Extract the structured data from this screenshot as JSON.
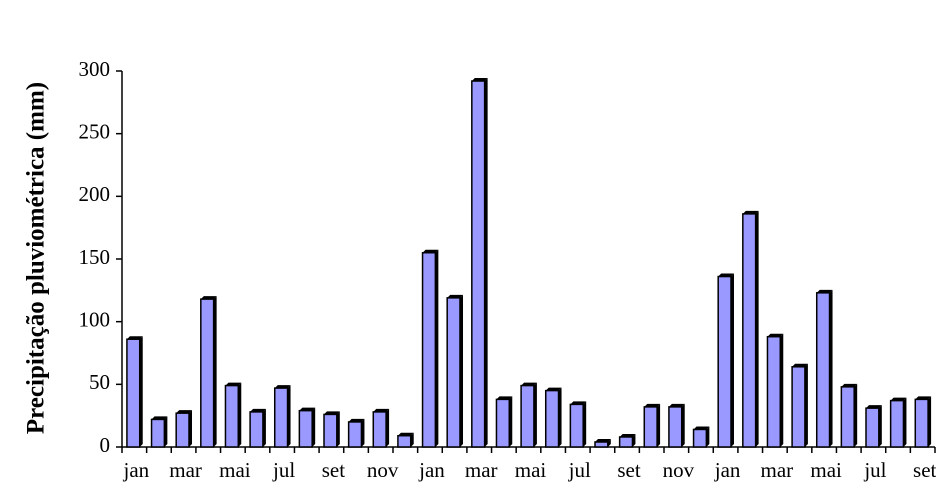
{
  "chart_data": {
    "type": "bar",
    "y_label": "Precipitação pluviométrica (mm)",
    "categories": [
      "jan",
      null,
      "mar",
      null,
      "mai",
      null,
      "jul",
      null,
      "set",
      null,
      "nov",
      null,
      "jan",
      null,
      "mar",
      null,
      "mai",
      null,
      "jul",
      null,
      "set",
      null,
      "nov",
      null,
      "jan",
      null,
      "mar",
      null,
      "mai",
      null,
      "jul",
      null,
      "set"
    ],
    "values": [
      86,
      22,
      27,
      118,
      49,
      28,
      47,
      29,
      26,
      20,
      28,
      9,
      155,
      119,
      292,
      38,
      49,
      45,
      34,
      4,
      8,
      32,
      32,
      14,
      136,
      186,
      88,
      64,
      123,
      48,
      31,
      37,
      38
    ],
    "color": "#9999ff",
    "ylim": [
      0,
      300
    ],
    "yticks": [
      0,
      50,
      100,
      150,
      200,
      250,
      300
    ]
  }
}
